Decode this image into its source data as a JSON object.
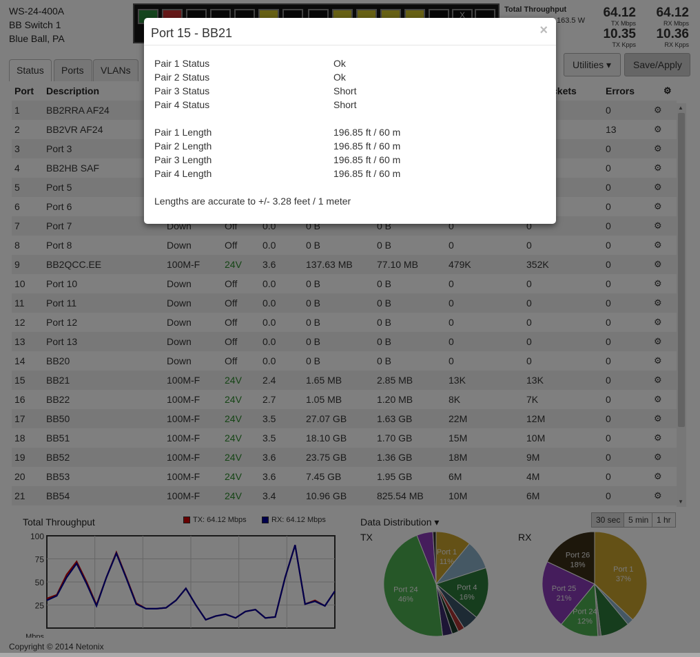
{
  "device": {
    "model": "WS-24-400A",
    "name": "BB Switch 1",
    "location": "Blue Ball, PA"
  },
  "throughput": {
    "title": "Total Throughput",
    "power": "163.5 W",
    "tx_mbps": "64.12",
    "tx_mbps_label": "TX Mbps",
    "rx_mbps": "64.12",
    "rx_mbps_label": "RX Mbps",
    "tx_kpps": "10.35",
    "tx_kpps_label": "TX Kpps",
    "rx_kpps": "10.36",
    "rx_kpps_label": "RX Kpps"
  },
  "tabs": [
    "Status",
    "Ports",
    "VLANs"
  ],
  "toolbar": {
    "utilities": "Utilities",
    "save": "Save/Apply"
  },
  "table": {
    "headers": {
      "port": "Port",
      "description": "Description",
      "packets": "ckets",
      "errors": "Errors"
    },
    "rows": [
      [
        "1",
        "BB2RRA AF24",
        "",
        "",
        "",
        "",
        "",
        "",
        "",
        "0"
      ],
      [
        "2",
        "BB2VR AF24",
        "",
        "",
        "",
        "",
        "",
        "",
        "",
        "13"
      ],
      [
        "3",
        "Port 3",
        "",
        "",
        "",
        "",
        "",
        "",
        "",
        "0"
      ],
      [
        "4",
        "BB2HB SAF",
        "",
        "",
        "",
        "",
        "",
        "",
        "",
        "0"
      ],
      [
        "5",
        "Port 5",
        "",
        "",
        "",
        "",
        "",
        "",
        "",
        "0"
      ],
      [
        "6",
        "Port 6",
        "",
        "",
        "",
        "",
        "",
        "",
        "",
        "0"
      ],
      [
        "7",
        "Port 7",
        "Down",
        "Off",
        "0.0",
        "0 B",
        "0 B",
        "0",
        "0",
        "0"
      ],
      [
        "8",
        "Port 8",
        "Down",
        "Off",
        "0.0",
        "0 B",
        "0 B",
        "0",
        "0",
        "0"
      ],
      [
        "9",
        "BB2QCC.EE",
        "100M-F",
        "24V",
        "3.6",
        "137.63 MB",
        "77.10 MB",
        "479K",
        "352K",
        "0"
      ],
      [
        "10",
        "Port 10",
        "Down",
        "Off",
        "0.0",
        "0 B",
        "0 B",
        "0",
        "0",
        "0"
      ],
      [
        "11",
        "Port 11",
        "Down",
        "Off",
        "0.0",
        "0 B",
        "0 B",
        "0",
        "0",
        "0"
      ],
      [
        "12",
        "Port 12",
        "Down",
        "Off",
        "0.0",
        "0 B",
        "0 B",
        "0",
        "0",
        "0"
      ],
      [
        "13",
        "Port 13",
        "Down",
        "Off",
        "0.0",
        "0 B",
        "0 B",
        "0",
        "0",
        "0"
      ],
      [
        "14",
        "BB20",
        "Down",
        "Off",
        "0.0",
        "0 B",
        "0 B",
        "0",
        "0",
        "0"
      ],
      [
        "15",
        "BB21",
        "100M-F",
        "24V",
        "2.4",
        "1.65 MB",
        "2.85 MB",
        "13K",
        "13K",
        "0"
      ],
      [
        "16",
        "BB22",
        "100M-F",
        "24V",
        "2.7",
        "1.05 MB",
        "1.20 MB",
        "8K",
        "7K",
        "0"
      ],
      [
        "17",
        "BB50",
        "100M-F",
        "24V",
        "3.5",
        "27.07 GB",
        "1.63 GB",
        "22M",
        "12M",
        "0"
      ],
      [
        "18",
        "BB51",
        "100M-F",
        "24V",
        "3.5",
        "18.10 GB",
        "1.70 GB",
        "15M",
        "10M",
        "0"
      ],
      [
        "19",
        "BB52",
        "100M-F",
        "24V",
        "3.6",
        "23.75 GB",
        "1.36 GB",
        "18M",
        "9M",
        "0"
      ],
      [
        "20",
        "BB53",
        "100M-F",
        "24V",
        "3.6",
        "7.45 GB",
        "1.95 GB",
        "6M",
        "4M",
        "0"
      ],
      [
        "21",
        "BB54",
        "100M-F",
        "24V",
        "3.4",
        "10.96 GB",
        "825.54 MB",
        "10M",
        "6M",
        "0"
      ]
    ]
  },
  "chart": {
    "title": "Total Throughput",
    "tx_legend": "TX: 64.12 Mbps",
    "rx_legend": "RX: 64.12 Mbps",
    "unit": "Mbps",
    "yticks": [
      "100",
      "75",
      "50",
      "25"
    ],
    "tx_color": "#cc0000",
    "rx_color": "#000099"
  },
  "distribution": {
    "title": "Data Distribution",
    "tx_label": "TX",
    "rx_label": "RX",
    "ranges": [
      "30 sec",
      "5 min",
      "1 hr"
    ]
  },
  "chart_data": [
    {
      "type": "line",
      "title": "Total Throughput",
      "ylabel": "Mbps",
      "ylim": [
        0,
        100
      ],
      "x": [
        0,
        1,
        2,
        3,
        4,
        5,
        6,
        7,
        8,
        9,
        10,
        11,
        12,
        13,
        14,
        15,
        16,
        17,
        18,
        19,
        20,
        21,
        22,
        23,
        24,
        25,
        26,
        27,
        28,
        29
      ],
      "series": [
        {
          "name": "TX: 64.12 Mbps",
          "values": [
            32,
            36,
            58,
            72,
            50,
            25,
            55,
            82,
            55,
            27,
            21,
            21,
            22,
            30,
            43,
            25,
            9,
            13,
            15,
            11,
            18,
            20,
            11,
            12,
            55,
            90,
            26,
            30,
            24,
            40
          ]
        },
        {
          "name": "RX: 64.12 Mbps",
          "values": [
            30,
            35,
            55,
            70,
            48,
            24,
            55,
            81,
            54,
            26,
            21,
            21,
            22,
            30,
            43,
            25,
            9,
            13,
            15,
            11,
            18,
            20,
            11,
            12,
            55,
            90,
            26,
            29,
            24,
            40
          ]
        }
      ]
    },
    {
      "type": "pie",
      "title": "TX",
      "slices": [
        {
          "label": "Port 1",
          "value": 11,
          "color": "#c9a22c"
        },
        {
          "label": "",
          "value": 9,
          "color": "#8ab0c8"
        },
        {
          "label": "Port 4",
          "value": 16,
          "color": "#2d7a3a"
        },
        {
          "label": "",
          "value": 5,
          "color": "#3b5468"
        },
        {
          "label": "",
          "value": 2,
          "color": "#a33"
        },
        {
          "label": "",
          "value": 2,
          "color": "#1a3a2a"
        },
        {
          "label": "",
          "value": 3,
          "color": "#3a2a6a"
        },
        {
          "label": "Port 24",
          "value": 46,
          "color": "#4caf50"
        },
        {
          "label": "",
          "value": 5,
          "color": "#8a3ab9"
        },
        {
          "label": "",
          "value": 1,
          "color": "#333"
        }
      ]
    },
    {
      "type": "pie",
      "title": "RX",
      "slices": [
        {
          "label": "Port 1",
          "value": 37,
          "color": "#c9a22c"
        },
        {
          "label": "",
          "value": 2,
          "color": "#8ab0c8"
        },
        {
          "label": "",
          "value": 9,
          "color": "#2d7a3a"
        },
        {
          "label": "",
          "value": 1,
          "color": "#aaa"
        },
        {
          "label": "Port 24",
          "value": 12,
          "color": "#4caf50"
        },
        {
          "label": "Port 25",
          "value": 21,
          "color": "#8a3ab9"
        },
        {
          "label": "Port 26",
          "value": 18,
          "color": "#3a2e16"
        }
      ]
    }
  ],
  "copyright": "Copyright © 2014 Netonix",
  "modal": {
    "title": "Port 15 - BB21",
    "close": "×",
    "rows": [
      {
        "k": "Pair 1 Status",
        "v": "Ok"
      },
      {
        "k": "Pair 2 Status",
        "v": "Ok"
      },
      {
        "k": "Pair 3 Status",
        "v": "Short"
      },
      {
        "k": "Pair 4 Status",
        "v": "Short"
      },
      {
        "k": "Pair 1 Length",
        "v": "196.85 ft / 60 m"
      },
      {
        "k": "Pair 2 Length",
        "v": "196.85 ft / 60 m"
      },
      {
        "k": "Pair 3 Length",
        "v": "196.85 ft / 60 m"
      },
      {
        "k": "Pair 4 Length",
        "v": "196.85 ft / 60 m"
      }
    ],
    "note": "Lengths are accurate to +/- 3.28 feet / 1 meter"
  }
}
